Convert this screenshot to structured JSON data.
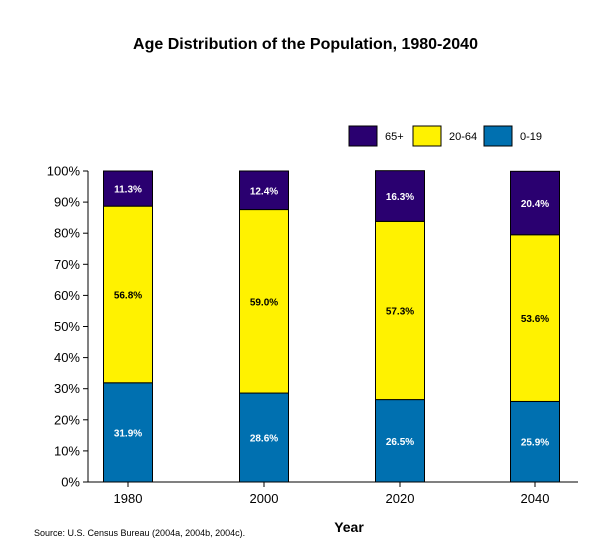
{
  "chart_data": {
    "type": "bar",
    "stacked": true,
    "title": "Age Distribution of the Population, 1980-2040",
    "xlabel": "Year",
    "ylabel": "",
    "categories": [
      "1980",
      "2000",
      "2020",
      "2040"
    ],
    "ylim": [
      0,
      100
    ],
    "yticks": [
      "0%",
      "10%",
      "20%",
      "30%",
      "40%",
      "50%",
      "60%",
      "70%",
      "80%",
      "90%",
      "100%"
    ],
    "series": [
      {
        "name": "0-19",
        "color": "#0070b0",
        "label_color": "#ffffff",
        "values": [
          31.9,
          28.6,
          26.5,
          25.9
        ],
        "labels": [
          "31.9%",
          "28.6%",
          "26.5%",
          "25.9%"
        ]
      },
      {
        "name": "20-64",
        "color": "#fff200",
        "label_color": "#000000",
        "values": [
          56.8,
          59.0,
          57.3,
          53.6
        ],
        "labels": [
          "56.8%",
          "59.0%",
          "57.3%",
          "53.6%"
        ]
      },
      {
        "name": "65+",
        "color": "#2a0070",
        "label_color": "#ffffff",
        "values": [
          11.3,
          12.4,
          16.3,
          20.4
        ],
        "labels": [
          "11.3%",
          "12.4%",
          "16.3%",
          "20.4%"
        ]
      }
    ],
    "legend": {
      "placement": "top-right",
      "order": [
        "65+",
        "20-64",
        "0-19"
      ]
    },
    "grid": false
  },
  "source": "Source: U.S. Census Bureau (2004a, 2004b, 2004c)."
}
